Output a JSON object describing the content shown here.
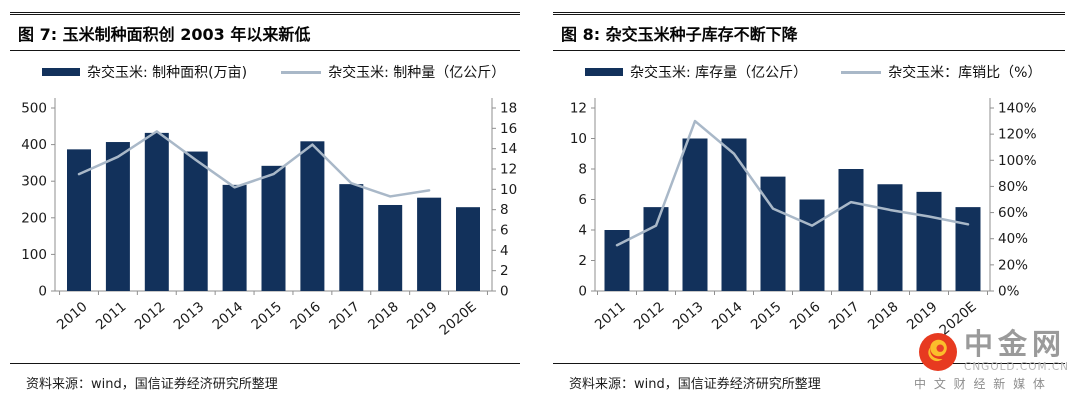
{
  "page": {
    "background": "#ffffff"
  },
  "chart_data": [
    {
      "type": "bar+line",
      "title": "图 7: 玉米制种面积创 2003 年以来新低",
      "categories": [
        "2010",
        "2011",
        "2012",
        "2013",
        "2014",
        "2015",
        "2016",
        "2017",
        "2018",
        "2019",
        "2020E"
      ],
      "series": [
        {
          "name": "杂交玉米: 制种面积(万亩)",
          "type": "bar",
          "axis": "left",
          "color": "#12315B",
          "values": [
            387,
            407,
            432,
            381,
            290,
            342,
            409,
            292,
            235,
            255,
            229
          ]
        },
        {
          "name": "杂交玉米: 制种量（亿公斤）",
          "type": "line",
          "axis": "right",
          "color": "#A9B8C8",
          "values": [
            11.5,
            13.2,
            15.7,
            12.9,
            10.2,
            11.5,
            14.4,
            10.6,
            9.3,
            9.9,
            null
          ]
        }
      ],
      "left_axis": {
        "min": 0,
        "max": 500,
        "step": 100,
        "labels": [
          "0",
          "100",
          "200",
          "300",
          "400",
          "500"
        ]
      },
      "right_axis": {
        "min": 0,
        "max": 18,
        "step": 2,
        "labels": [
          "0",
          "2",
          "4",
          "6",
          "8",
          "10",
          "12",
          "14",
          "16",
          "18"
        ]
      },
      "grid": false,
      "legend_position": "top"
    },
    {
      "type": "bar+line",
      "title": "图 8: 杂交玉米种子库存不断下降",
      "categories": [
        "2011",
        "2012",
        "2013",
        "2014",
        "2015",
        "2016",
        "2017",
        "2018",
        "2019",
        "2020E"
      ],
      "series": [
        {
          "name": "杂交玉米: 库存量（亿公斤）",
          "type": "bar",
          "axis": "left",
          "color": "#12315B",
          "values": [
            4,
            5.5,
            10,
            10,
            7.5,
            6,
            8,
            7,
            6.5,
            5.5
          ]
        },
        {
          "name": "杂交玉米：库销比（%）",
          "type": "line",
          "axis": "right",
          "color": "#A9B8C8",
          "values": [
            35,
            50,
            130,
            105,
            63,
            50,
            68,
            62,
            57,
            51
          ]
        }
      ],
      "left_axis": {
        "min": 0,
        "max": 12,
        "step": 2,
        "labels": [
          "0",
          "2",
          "4",
          "6",
          "8",
          "10",
          "12"
        ]
      },
      "right_axis": {
        "min": 0,
        "max": 140,
        "step": 20,
        "unit": "%",
        "labels": [
          "0%",
          "20%",
          "40%",
          "60%",
          "80%",
          "100%",
          "120%",
          "140%"
        ]
      },
      "grid": false,
      "legend_position": "top"
    }
  ],
  "panels": [
    {
      "source": "资料来源：wind，国信证券经济研究所整理"
    },
    {
      "source": "资料来源：wind，国信证券经济研究所整理"
    }
  ],
  "logo": {
    "brand": "中金网",
    "domain": "CNGOLD.COM.CN",
    "tagline": "中 文 财 经 新 媒 体",
    "colors": {
      "circle": "#E73A20",
      "cloud": "#FBBE2B",
      "cloud_hole": "#E8402A",
      "brand_text": "#9A9A9A",
      "domain_text": "#B5B5B5",
      "tagline_text": "#8D8D8D"
    }
  }
}
